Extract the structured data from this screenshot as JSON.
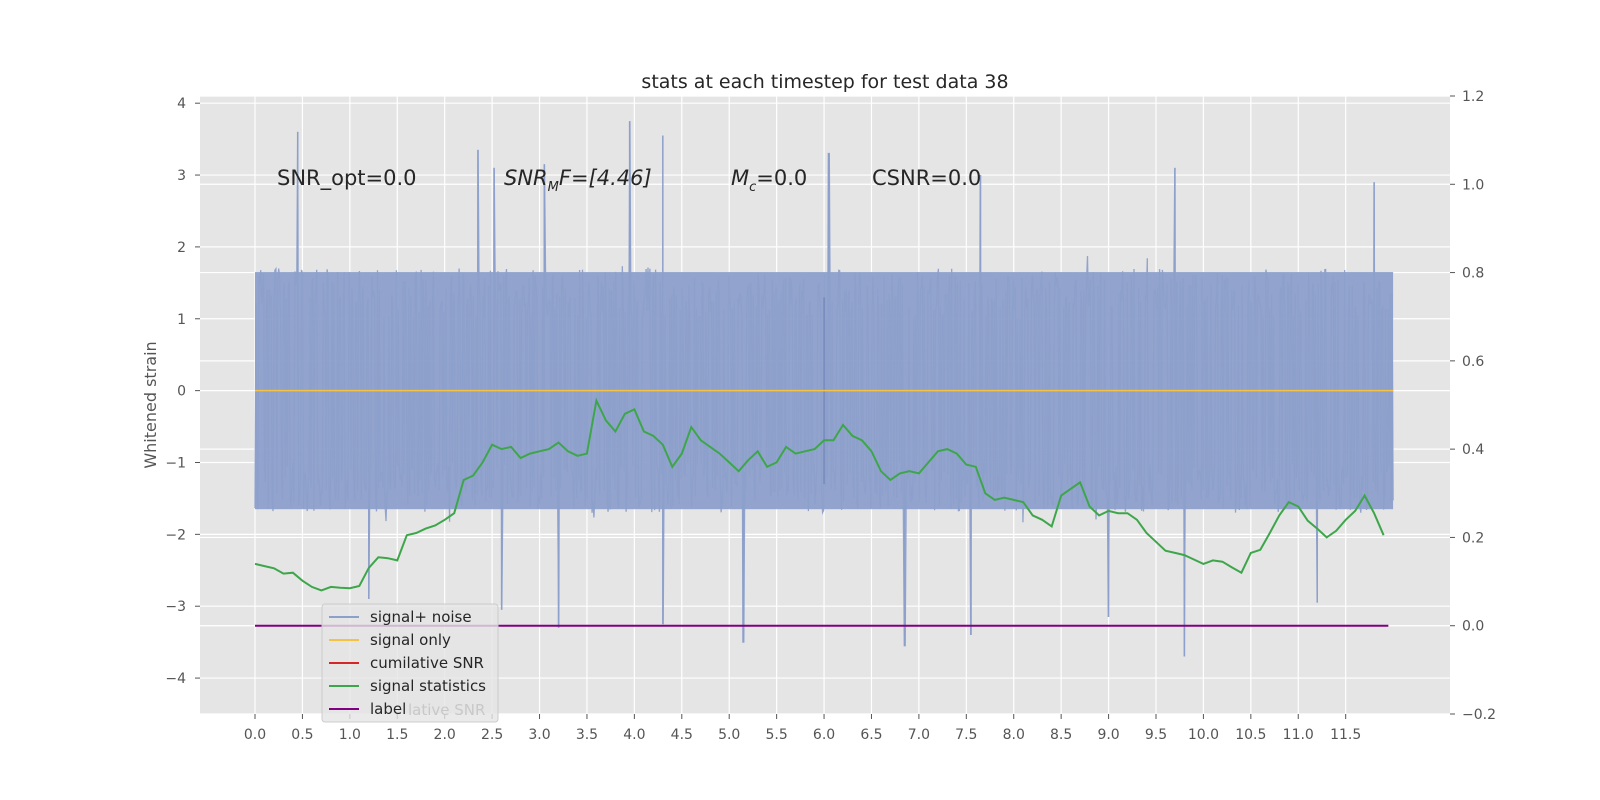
{
  "chart_data": {
    "type": "line",
    "title": "stats at each timestep for test data 38",
    "ylabel": "Whitened strain",
    "xlabel": "",
    "xlim": [
      -0.58,
      12.6
    ],
    "ylim": [
      -4.5,
      4.1
    ],
    "ylim_right": [
      -0.2,
      1.2
    ],
    "grid": true,
    "x_ticks": [
      "0.0",
      "0.5",
      "1.0",
      "1.5",
      "2.0",
      "2.5",
      "3.0",
      "3.5",
      "4.0",
      "4.5",
      "5.0",
      "5.5",
      "6.0",
      "6.5",
      "7.0",
      "7.5",
      "8.0",
      "8.5",
      "9.0",
      "9.5",
      "10.0",
      "10.5",
      "11.0",
      "11.5"
    ],
    "y_ticks_left": [
      "4",
      "3",
      "2",
      "1",
      "0",
      "−1",
      "−2",
      "−3",
      "−4"
    ],
    "y_ticks_right": [
      "1.2",
      "1.0",
      "0.8",
      "0.6",
      "0.4",
      "0.2",
      "0.0",
      "−0.2"
    ],
    "annotations": [
      {
        "id": "snr_opt",
        "text": "SNR_opt=0.0"
      },
      {
        "id": "snr_mf_sym",
        "text": "SNR"
      },
      {
        "id": "snr_mf_sub",
        "text": "M"
      },
      {
        "id": "snr_mf_rest",
        "text": "F=[4.46]"
      },
      {
        "id": "mc_sym",
        "text": "M"
      },
      {
        "id": "mc_sub",
        "text": "c"
      },
      {
        "id": "mc_rest",
        "text": "=0.0"
      },
      {
        "id": "csnr",
        "text": "CSNR=0.0"
      }
    ],
    "legend": {
      "placement": "lower-left",
      "entries": [
        {
          "label": "signal+ noise",
          "color": "#8da0cb"
        },
        {
          "label": "signal only",
          "color": "#f5c242"
        },
        {
          "label": "cumilative SNR",
          "color": "#d62728"
        },
        {
          "label": "signal statistics",
          "color": "#3ea64a"
        },
        {
          "label": "label",
          "color": "#800080"
        }
      ],
      "ghost_text": "lative SNR"
    },
    "series": [
      {
        "name": "signal+ noise",
        "axis": "left",
        "color": "#8da0cb",
        "x_start": 0.0,
        "x_end": 12.0,
        "points": 1200,
        "envelope": {
          "upper_typical": 1.65,
          "lower_typical": -1.65,
          "spikes": [
            {
              "x": 0.45,
              "y": 3.6
            },
            {
              "x": 2.35,
              "y": 3.35
            },
            {
              "x": 2.52,
              "y": 3.1
            },
            {
              "x": 3.05,
              "y": 3.15
            },
            {
              "x": 3.95,
              "y": 3.75
            },
            {
              "x": 4.3,
              "y": 3.55
            },
            {
              "x": 6.05,
              "y": 3.3
            },
            {
              "x": 7.65,
              "y": 3.0
            },
            {
              "x": 9.7,
              "y": 3.1
            },
            {
              "x": 11.8,
              "y": 2.9
            },
            {
              "x": 3.2,
              "y": -3.3
            },
            {
              "x": 4.3,
              "y": -3.25
            },
            {
              "x": 5.15,
              "y": -3.5
            },
            {
              "x": 6.85,
              "y": -3.55
            },
            {
              "x": 7.55,
              "y": -3.4
            },
            {
              "x": 9.0,
              "y": -3.15
            },
            {
              "x": 9.8,
              "y": -3.7
            },
            {
              "x": 11.2,
              "y": -2.95
            },
            {
              "x": 2.6,
              "y": -3.05
            },
            {
              "x": 1.2,
              "y": -2.9
            }
          ],
          "note_x": 6.0
        }
      },
      {
        "name": "signal only",
        "axis": "left",
        "color": "#f5c242",
        "x": [
          0.0,
          12.0
        ],
        "y": [
          0.0,
          0.0
        ]
      },
      {
        "name": "signal statistics",
        "axis": "right",
        "color": "#3ea64a",
        "x": [
          0.0,
          0.1,
          0.2,
          0.3,
          0.4,
          0.5,
          0.6,
          0.7,
          0.8,
          0.9,
          1.0,
          1.1,
          1.2,
          1.3,
          1.4,
          1.5,
          1.6,
          1.7,
          1.8,
          1.9,
          2.0,
          2.1,
          2.2,
          2.3,
          2.4,
          2.5,
          2.6,
          2.7,
          2.8,
          2.9,
          3.0,
          3.1,
          3.2,
          3.3,
          3.4,
          3.5,
          3.6,
          3.7,
          3.8,
          3.9,
          4.0,
          4.1,
          4.2,
          4.3,
          4.4,
          4.5,
          4.6,
          4.7,
          4.8,
          4.9,
          5.0,
          5.1,
          5.2,
          5.3,
          5.4,
          5.5,
          5.6,
          5.7,
          5.8,
          5.9,
          6.0,
          6.1,
          6.2,
          6.3,
          6.4,
          6.5,
          6.6,
          6.7,
          6.8,
          6.9,
          7.0,
          7.1,
          7.2,
          7.3,
          7.4,
          7.5,
          7.6,
          7.7,
          7.8,
          7.9,
          8.0,
          8.1,
          8.2,
          8.3,
          8.4,
          8.5,
          8.6,
          8.7,
          8.8,
          8.9,
          9.0,
          9.1,
          9.2,
          9.3,
          9.4,
          9.5,
          9.6,
          9.7,
          9.8,
          9.9,
          10.0,
          10.1,
          10.2,
          10.3,
          10.4,
          10.5,
          10.6,
          10.7,
          10.8,
          10.9,
          11.0,
          11.1,
          11.2,
          11.3,
          11.4,
          11.5,
          11.6,
          11.7,
          11.8,
          11.9
        ],
        "y": [
          0.14,
          0.135,
          0.13,
          0.118,
          0.12,
          0.102,
          0.088,
          0.08,
          0.088,
          0.086,
          0.085,
          0.09,
          0.131,
          0.155,
          0.153,
          0.148,
          0.205,
          0.21,
          0.22,
          0.227,
          0.24,
          0.255,
          0.33,
          0.34,
          0.37,
          0.41,
          0.4,
          0.405,
          0.38,
          0.39,
          0.395,
          0.4,
          0.415,
          0.395,
          0.385,
          0.39,
          0.51,
          0.465,
          0.44,
          0.48,
          0.49,
          0.44,
          0.43,
          0.41,
          0.36,
          0.39,
          0.45,
          0.42,
          0.405,
          0.39,
          0.37,
          0.35,
          0.375,
          0.395,
          0.36,
          0.37,
          0.405,
          0.39,
          0.395,
          0.4,
          0.42,
          0.42,
          0.455,
          0.43,
          0.42,
          0.395,
          0.35,
          0.33,
          0.345,
          0.35,
          0.345,
          0.37,
          0.395,
          0.4,
          0.39,
          0.365,
          0.36,
          0.3,
          0.285,
          0.29,
          0.285,
          0.28,
          0.25,
          0.24,
          0.225,
          0.295,
          0.31,
          0.325,
          0.27,
          0.25,
          0.26,
          0.255,
          0.255,
          0.24,
          0.21,
          0.19,
          0.17,
          0.165,
          0.16,
          0.15,
          0.14,
          0.148,
          0.145,
          0.132,
          0.12,
          0.165,
          0.172,
          0.21,
          0.25,
          0.28,
          0.27,
          0.238,
          0.22,
          0.2,
          0.215,
          0.24,
          0.26,
          0.295,
          0.255,
          0.205
        ]
      },
      {
        "name": "label",
        "axis": "right",
        "color": "#800080",
        "x": [
          0.0,
          11.95
        ],
        "y": [
          0.0,
          0.0
        ]
      }
    ]
  }
}
